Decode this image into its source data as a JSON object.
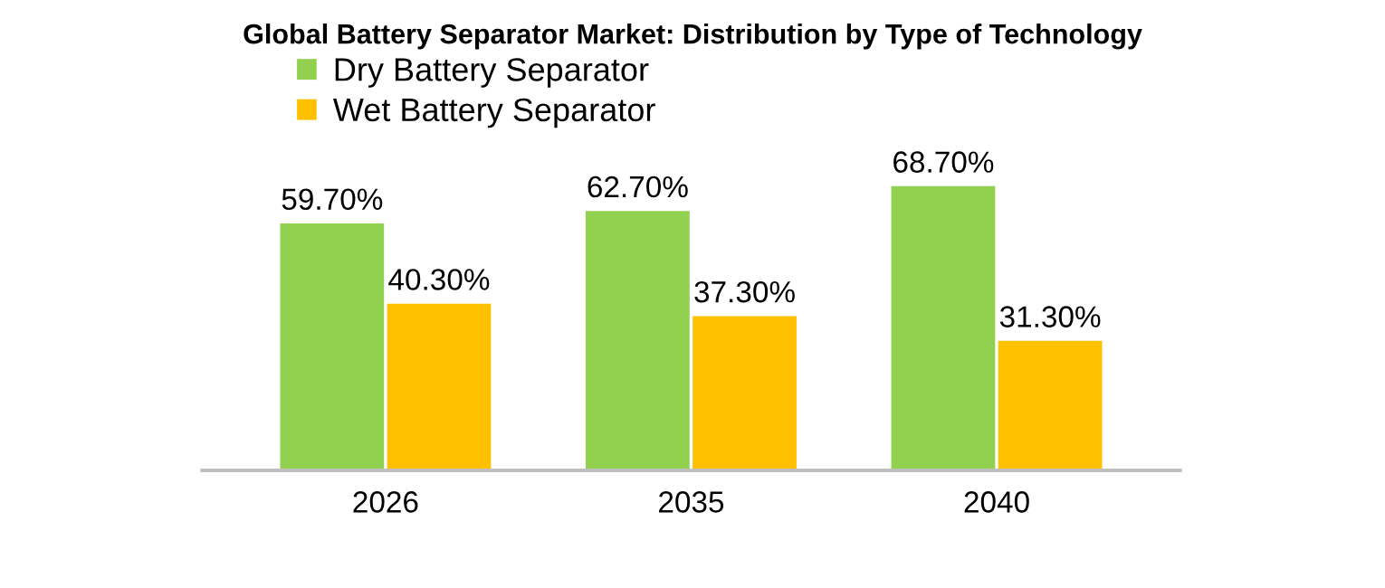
{
  "chart_data": {
    "type": "bar",
    "title": "Global Battery Separator Market: Distribution by Type of Technology",
    "categories": [
      "2026",
      "2035",
      "2040"
    ],
    "series": [
      {
        "name": "Dry Battery Separator",
        "color": "#92d050",
        "values": [
          59.7,
          62.7,
          68.7
        ],
        "value_labels": [
          "59.70%",
          "62.70%",
          "68.70%"
        ]
      },
      {
        "name": "Wet Battery Separator",
        "color": "#ffc000",
        "values": [
          40.3,
          37.3,
          31.3
        ],
        "value_labels": [
          "40.30%",
          "37.30%",
          "31.30%"
        ]
      }
    ],
    "legend": "top",
    "grid": false
  }
}
